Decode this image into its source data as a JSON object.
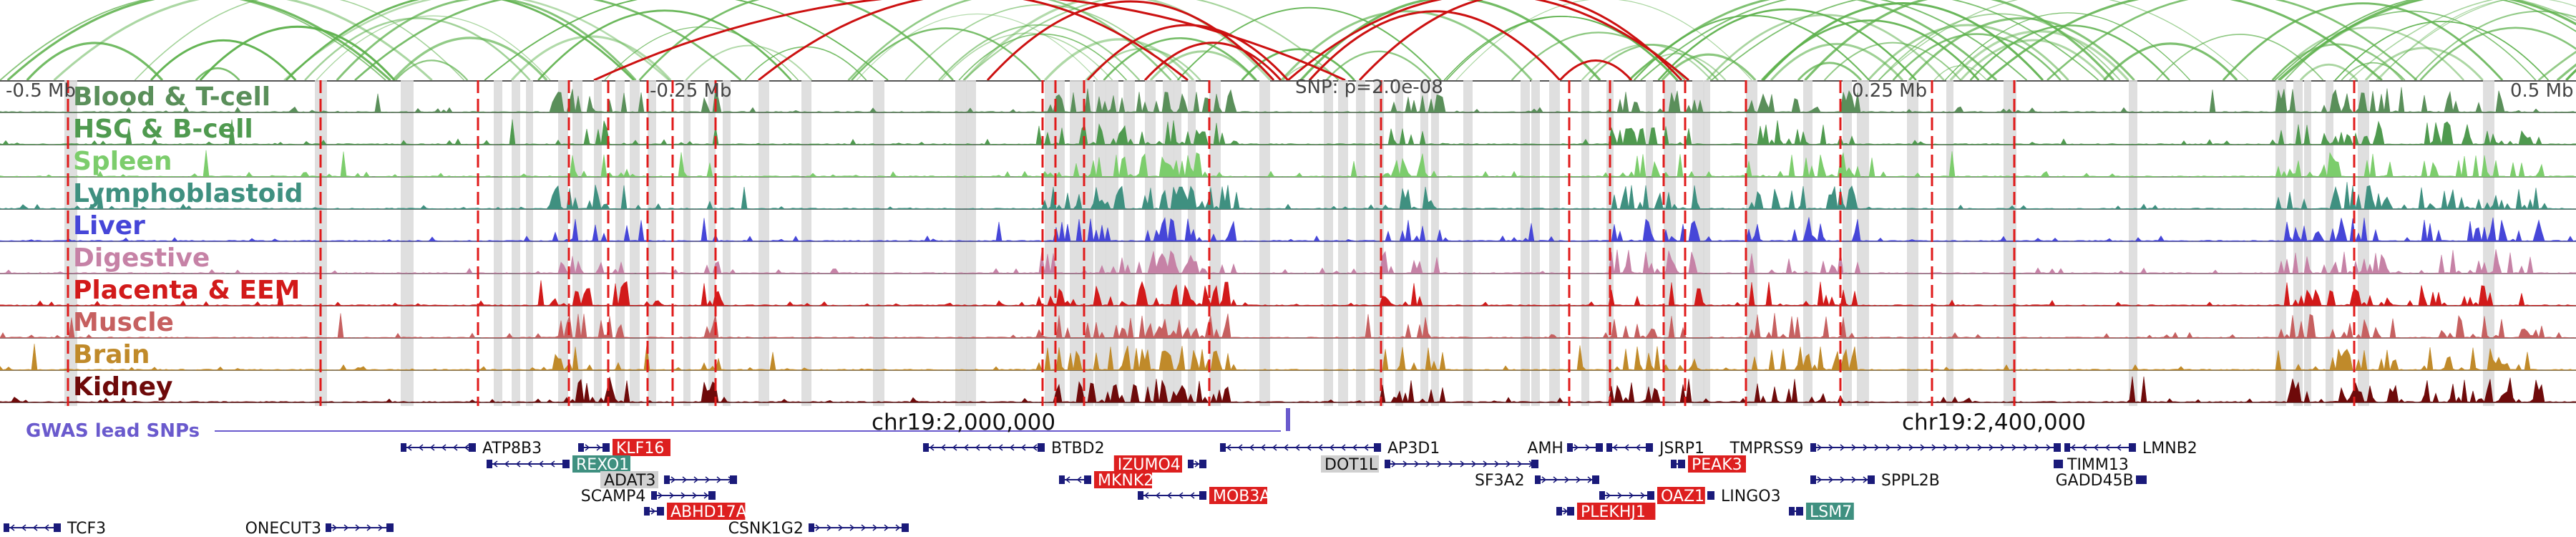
{
  "axis_labels": {
    "left": "-0.5 Mb",
    "minus_quarter": "-0.25 Mb",
    "snp": "SNP: p=2.0e-08",
    "plus_quarter": "0.25 Mb",
    "right": "0.5 Mb"
  },
  "tracks": [
    {
      "name": "Blood & T-cell",
      "color": "#5a8f5a"
    },
    {
      "name": "HSC & B-cell",
      "color": "#4f9a4f"
    },
    {
      "name": "Spleen",
      "color": "#7ccd6c"
    },
    {
      "name": "Lymphoblastoid",
      "color": "#3f9080"
    },
    {
      "name": "Liver",
      "color": "#4646d8"
    },
    {
      "name": "Digestive",
      "color": "#c682a6"
    },
    {
      "name": "Placenta & EEM",
      "color": "#d21a1a"
    },
    {
      "name": "Muscle",
      "color": "#c66060"
    },
    {
      "name": "Brain",
      "color": "#c08a2a"
    },
    {
      "name": "Kidney",
      "color": "#6e0a0a"
    }
  ],
  "gwas_label": "GWAS lead SNPs",
  "gwas_color": "#6a5acd",
  "coordinates": [
    "chr19:2,000,000",
    "chr19:2,400,000"
  ],
  "genes": [
    {
      "name": "ATP8B3",
      "style": "plain"
    },
    {
      "name": "KLF16",
      "style": "red"
    },
    {
      "name": "REXO1",
      "style": "teal"
    },
    {
      "name": "ADAT3",
      "style": "grey"
    },
    {
      "name": "SCAMP4",
      "style": "plain"
    },
    {
      "name": "ABHD17A",
      "style": "red"
    },
    {
      "name": "TCF3",
      "style": "plain"
    },
    {
      "name": "ONECUT3",
      "style": "plain"
    },
    {
      "name": "CSNK1G2",
      "style": "plain"
    },
    {
      "name": "BTBD2",
      "style": "plain"
    },
    {
      "name": "IZUMO4",
      "style": "red"
    },
    {
      "name": "MKNK2",
      "style": "red"
    },
    {
      "name": "MOB3A",
      "style": "red"
    },
    {
      "name": "AP3D1",
      "style": "plain"
    },
    {
      "name": "DOT1L",
      "style": "grey"
    },
    {
      "name": "AMH",
      "style": "plain"
    },
    {
      "name": "JSRP1",
      "style": "plain"
    },
    {
      "name": "SF3A2",
      "style": "plain"
    },
    {
      "name": "PEAK3",
      "style": "red"
    },
    {
      "name": "OAZ1",
      "style": "red"
    },
    {
      "name": "LINGO3",
      "style": "plain"
    },
    {
      "name": "PLEKHJ1",
      "style": "red"
    },
    {
      "name": "TMPRSS9",
      "style": "plain"
    },
    {
      "name": "TIMM13",
      "style": "plain"
    },
    {
      "name": "SPPL2B",
      "style": "plain"
    },
    {
      "name": "LSM7",
      "style": "teal"
    },
    {
      "name": "LMNB2",
      "style": "plain"
    },
    {
      "name": "GADD45B",
      "style": "plain"
    }
  ],
  "colors": {
    "loop_green": "#5bb04a",
    "loop_red": "#cc1111",
    "highlight_grey": "#d9d9d9",
    "gene_red_bg": "#dd1f1f",
    "gene_teal_bg": "#3f9080",
    "gene_grey_bg": "#d0d0d0",
    "gene_body": "#1a1a7a"
  }
}
